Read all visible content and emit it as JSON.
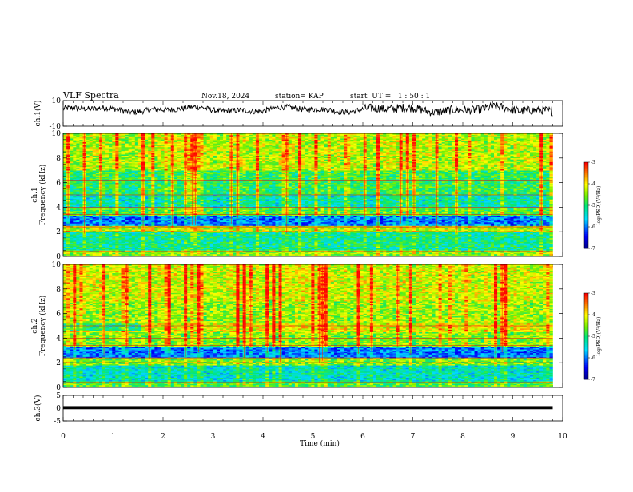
{
  "chart_data": [
    {
      "type": "line",
      "panel": "ch1-waveform",
      "title": "VLF Spectra",
      "date": "Nov.18, 2024",
      "station": "station= KAP",
      "start_ut": "start  UT =   1 : 50 : 1",
      "ylabel": "ch.1(V)",
      "ylim": [
        -10,
        10
      ],
      "ytick_labels": [
        "10",
        "-10"
      ],
      "xlim": [
        0,
        10
      ],
      "data_end_min": 9.8,
      "trace_mean": 3,
      "trace_range": [
        -3,
        9
      ]
    },
    {
      "type": "heatmap",
      "panel": "ch1-spectrogram",
      "ylabel": "ch.1",
      "ylabel2": "Frequency (kHz)",
      "ylim": [
        0,
        10
      ],
      "ytick_labels": [
        "0",
        "2",
        "4",
        "6",
        "8",
        "10"
      ],
      "xlim": [
        0,
        10
      ],
      "data_end_min": 9.8,
      "bands_khz": [
        {
          "from": 0,
          "to": 0.5,
          "level": -4.5
        },
        {
          "from": 0.5,
          "to": 2.0,
          "level": -5.2
        },
        {
          "from": 2.0,
          "to": 2.5,
          "level": -4.3
        },
        {
          "from": 2.5,
          "to": 3.3,
          "level": -6.0
        },
        {
          "from": 3.3,
          "to": 4.0,
          "level": -4.8
        },
        {
          "from": 4.0,
          "to": 5.0,
          "level": -5.4
        },
        {
          "from": 5.0,
          "to": 7.0,
          "level": -5.0
        },
        {
          "from": 7.0,
          "to": 10.0,
          "level": -4.4
        }
      ],
      "colorbar": {
        "label": "log(PSD)(V²/Hz)",
        "range": [
          -7,
          -3
        ],
        "tick_labels": [
          "-3",
          "-4",
          "-5",
          "-6",
          "-7"
        ]
      }
    },
    {
      "type": "heatmap",
      "panel": "ch2-spectrogram",
      "ylabel": "ch.2",
      "ylabel2": "Frequency (kHz)",
      "ylim": [
        0,
        10
      ],
      "ytick_labels": [
        "0",
        "2",
        "4",
        "6",
        "8",
        "10"
      ],
      "xlim": [
        0,
        10
      ],
      "data_end_min": 9.8,
      "bands_khz": [
        {
          "from": 0,
          "to": 0.5,
          "level": -4.8
        },
        {
          "from": 0.5,
          "to": 1.8,
          "level": -5.4
        },
        {
          "from": 1.8,
          "to": 2.4,
          "level": -4.6
        },
        {
          "from": 2.4,
          "to": 3.3,
          "level": -6.0
        },
        {
          "from": 3.3,
          "to": 4.5,
          "level": -4.6
        },
        {
          "from": 4.5,
          "to": 5.2,
          "level": -4.2
        },
        {
          "from": 5.2,
          "to": 7.0,
          "level": -4.5
        },
        {
          "from": 7.0,
          "to": 10.0,
          "level": -4.3
        }
      ],
      "colorbar": {
        "label": "log(PSD)(V²/Hz)",
        "range": [
          -7,
          -3
        ],
        "tick_labels": [
          "-3",
          "-4",
          "-5",
          "-6",
          "-7"
        ]
      }
    },
    {
      "type": "line",
      "panel": "ch3-waveform",
      "ylabel": "ch.3(V)",
      "ylim": [
        -5,
        5
      ],
      "ytick_labels": [
        "5",
        "0",
        "-5"
      ],
      "xlim": [
        0,
        10
      ],
      "data_end_min": 9.8,
      "trace_value": 0.2,
      "trace_thickness_v": 1.2
    }
  ],
  "xaxis": {
    "label": "Time (min)",
    "tick_labels": [
      "0",
      "1",
      "2",
      "3",
      "4",
      "5",
      "6",
      "7",
      "8",
      "9",
      "10"
    ]
  },
  "colors": {
    "trace": "#000000",
    "axis": "#000000",
    "background": "#ffffff"
  }
}
